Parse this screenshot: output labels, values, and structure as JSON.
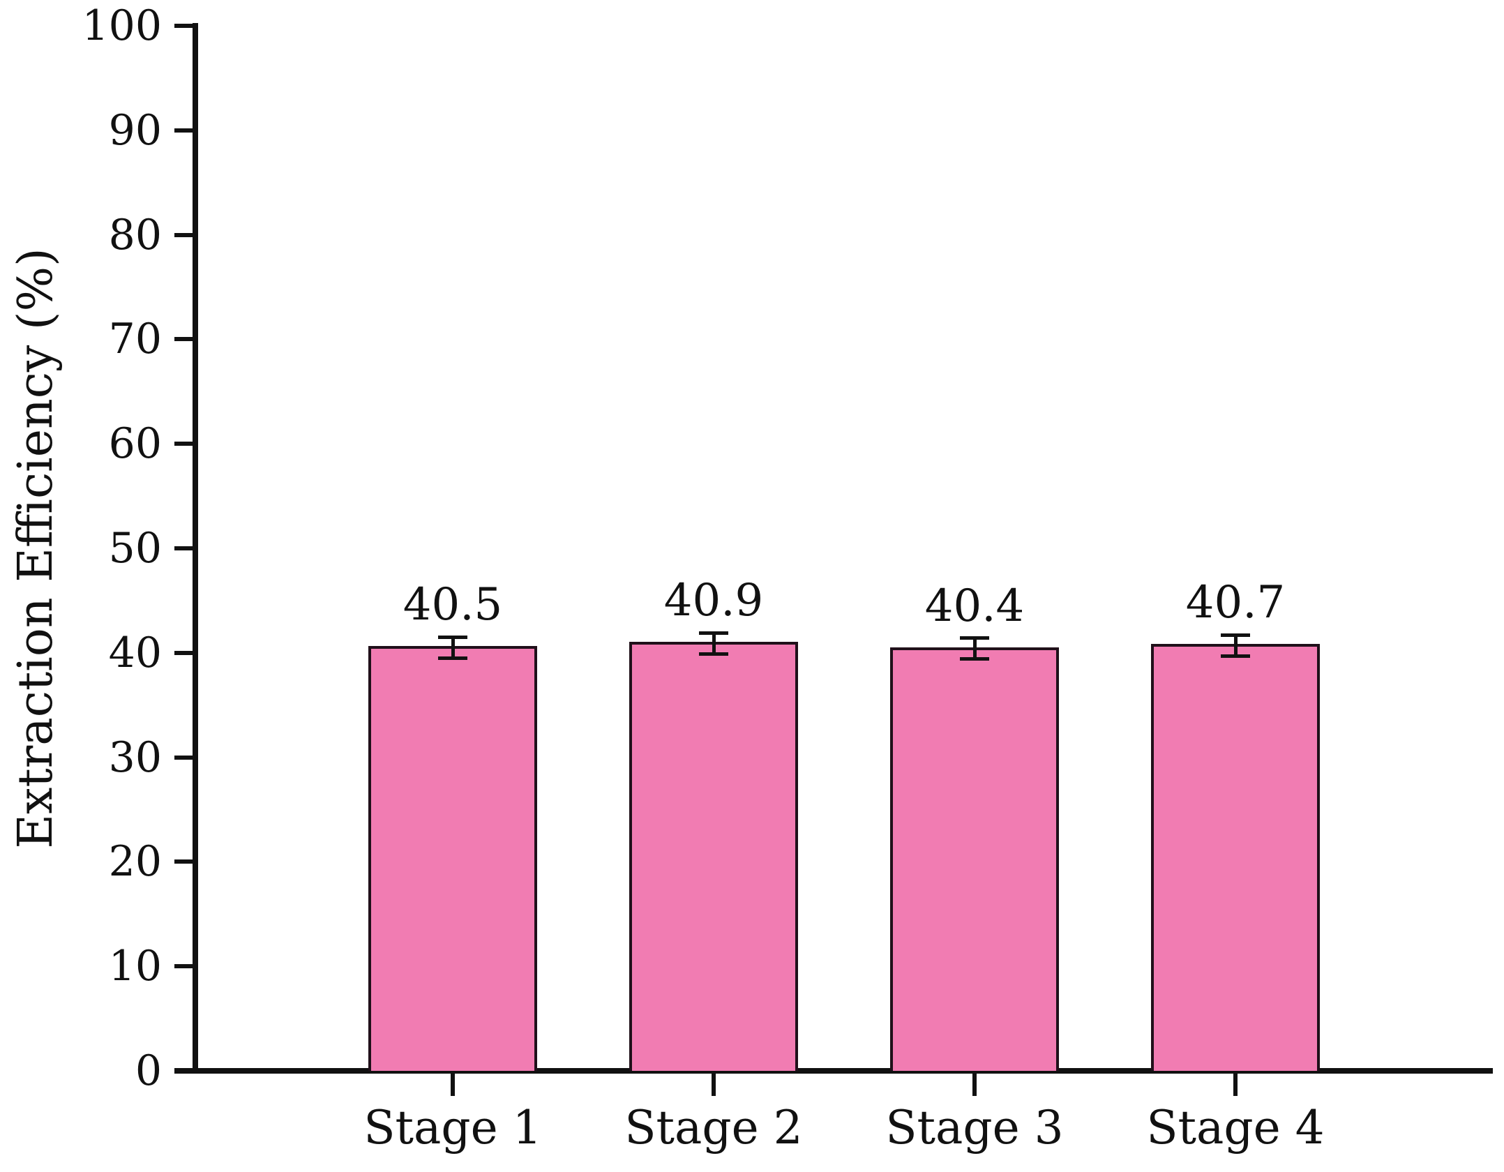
{
  "chart_data": {
    "type": "bar",
    "categories": [
      "Stage 1",
      "Stage 2",
      "Stage 3",
      "Stage 4"
    ],
    "values": [
      40.5,
      40.9,
      40.4,
      40.7
    ],
    "error_bars": [
      1.0,
      1.0,
      1.0,
      1.0
    ],
    "bar_labels": [
      "40.5",
      "40.9",
      "40.4",
      "40.7"
    ],
    "title": "",
    "xlabel": "",
    "ylabel": "Extraction Efficiency (%)",
    "ylim": [
      0,
      100
    ],
    "yticks": [
      0,
      10,
      20,
      30,
      40,
      50,
      60,
      70,
      80,
      90,
      100
    ],
    "grid": false,
    "legend": "none",
    "colors": {
      "bar_fill": "#F17CB2",
      "bar_border": "#20101A",
      "axis": "#111111",
      "error_bar": "#111111",
      "text": "#111111",
      "background": "#FFFFFF"
    }
  }
}
